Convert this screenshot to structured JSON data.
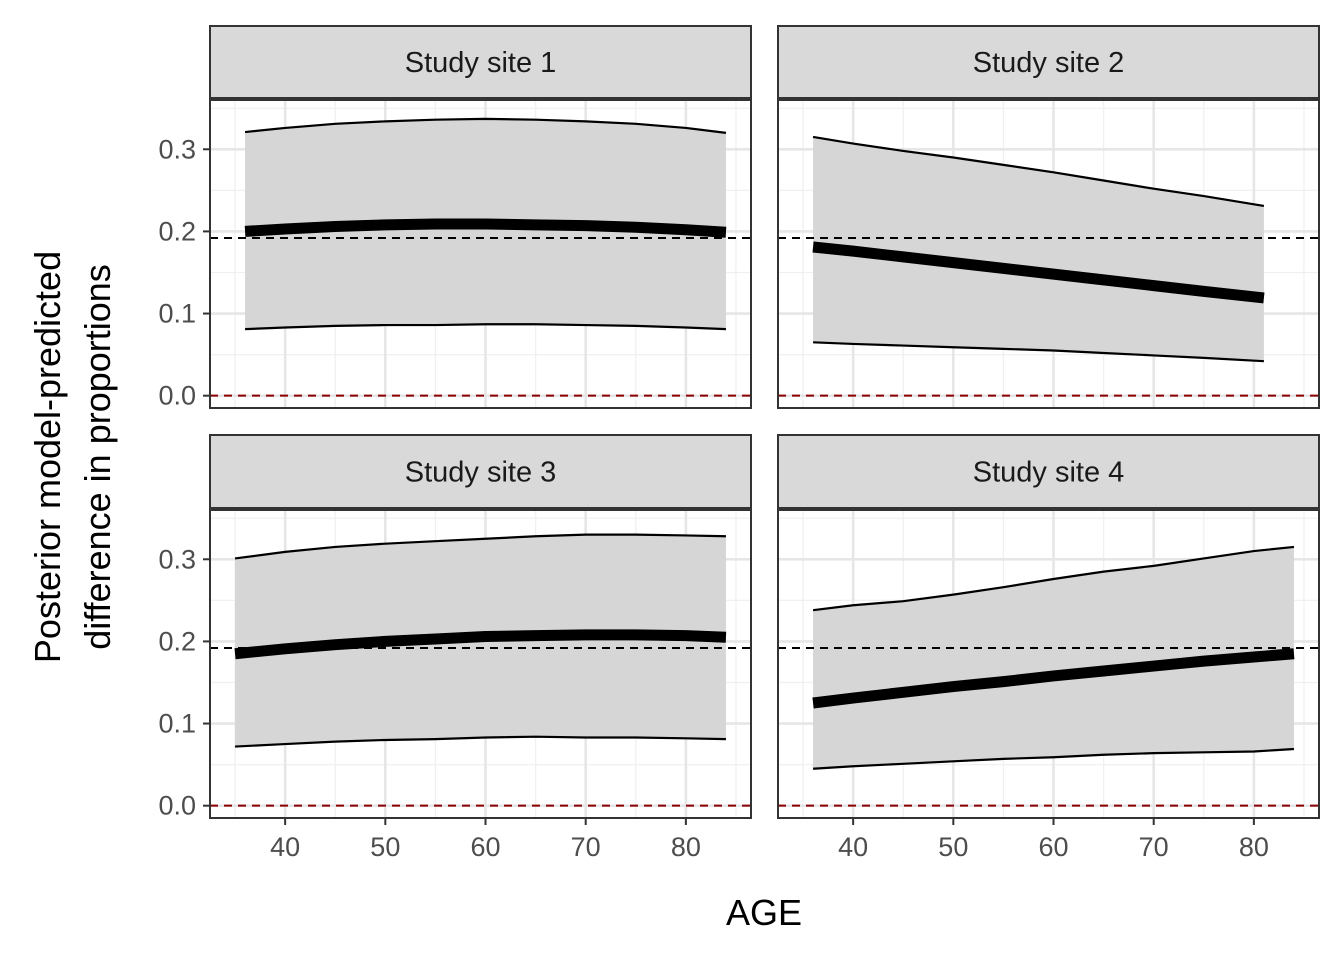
{
  "chart_data": {
    "type": "line",
    "xlabel": "AGE",
    "ylabel_lines": [
      "Posterior model-predicted",
      "difference in proportions"
    ],
    "x_ticks": [
      40,
      50,
      60,
      70,
      80
    ],
    "y_ticks": [
      "0.0",
      "0.1",
      "0.2",
      "0.3"
    ],
    "xlim": [
      32.5,
      86.5
    ],
    "ylim": [
      -0.015,
      0.36
    ],
    "reference_lines": [
      {
        "y": 0.192,
        "style": "dashed",
        "color": "#000000"
      },
      {
        "y": 0.0,
        "style": "dashed",
        "color": "#8b0000"
      }
    ],
    "grid": true,
    "ribbon_color": "#d6d6d6",
    "line_color": "#000000",
    "panels": [
      {
        "title": "Study site 1",
        "x": [
          36,
          40,
          45,
          50,
          55,
          60,
          65,
          70,
          75,
          80,
          84
        ],
        "mean": [
          0.2,
          0.203,
          0.206,
          0.208,
          0.209,
          0.209,
          0.208,
          0.207,
          0.205,
          0.202,
          0.199
        ],
        "lower": [
          0.081,
          0.083,
          0.085,
          0.086,
          0.086,
          0.087,
          0.087,
          0.086,
          0.085,
          0.083,
          0.081
        ],
        "upper": [
          0.321,
          0.326,
          0.331,
          0.334,
          0.336,
          0.337,
          0.336,
          0.334,
          0.331,
          0.326,
          0.32
        ]
      },
      {
        "title": "Study site 2",
        "x": [
          36,
          40,
          45,
          50,
          55,
          60,
          65,
          70,
          75,
          81
        ],
        "mean": [
          0.181,
          0.176,
          0.169,
          0.162,
          0.155,
          0.148,
          0.141,
          0.134,
          0.127,
          0.119
        ],
        "lower": [
          0.065,
          0.063,
          0.061,
          0.059,
          0.057,
          0.055,
          0.052,
          0.049,
          0.046,
          0.042
        ],
        "upper": [
          0.315,
          0.307,
          0.298,
          0.29,
          0.281,
          0.272,
          0.262,
          0.252,
          0.243,
          0.231
        ]
      },
      {
        "title": "Study site 3",
        "x": [
          35,
          40,
          45,
          50,
          55,
          60,
          65,
          70,
          75,
          80,
          84
        ],
        "mean": [
          0.185,
          0.191,
          0.196,
          0.2,
          0.203,
          0.206,
          0.207,
          0.208,
          0.208,
          0.207,
          0.205
        ],
        "lower": [
          0.072,
          0.075,
          0.078,
          0.08,
          0.081,
          0.083,
          0.084,
          0.083,
          0.083,
          0.082,
          0.081
        ],
        "upper": [
          0.301,
          0.309,
          0.315,
          0.319,
          0.322,
          0.325,
          0.328,
          0.33,
          0.33,
          0.329,
          0.328
        ]
      },
      {
        "title": "Study site 4",
        "x": [
          36,
          40,
          45,
          50,
          55,
          60,
          65,
          70,
          75,
          80,
          84
        ],
        "mean": [
          0.125,
          0.131,
          0.138,
          0.145,
          0.151,
          0.158,
          0.164,
          0.17,
          0.176,
          0.181,
          0.185
        ],
        "lower": [
          0.045,
          0.048,
          0.051,
          0.054,
          0.057,
          0.059,
          0.062,
          0.064,
          0.065,
          0.066,
          0.069
        ],
        "upper": [
          0.238,
          0.244,
          0.249,
          0.257,
          0.266,
          0.276,
          0.285,
          0.292,
          0.301,
          0.31,
          0.315
        ]
      }
    ]
  }
}
